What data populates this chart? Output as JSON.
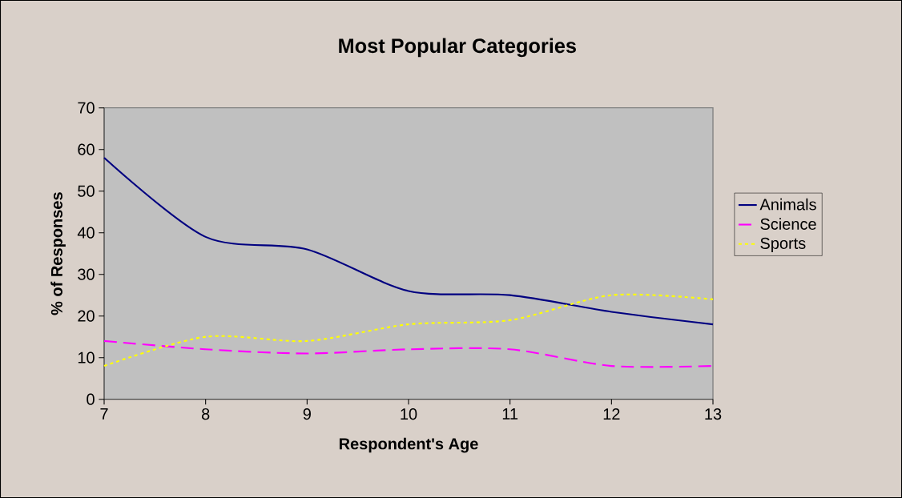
{
  "chart_data": {
    "type": "line",
    "title": "Most Popular Categories",
    "xlabel": "Respondent's Age",
    "ylabel": "% of Responses",
    "x": [
      7,
      8,
      9,
      10,
      11,
      12,
      13
    ],
    "series": [
      {
        "name": "Animals",
        "color": "#000080",
        "line_style": "solid",
        "values": [
          58,
          39,
          36,
          26,
          25,
          21,
          18
        ]
      },
      {
        "name": "Science",
        "color": "#ff00ff",
        "line_style": "dashed",
        "values": [
          14,
          12,
          11,
          12,
          12,
          8,
          8
        ]
      },
      {
        "name": "Sports",
        "color": "#ffff00",
        "line_style": "dotted",
        "values": [
          8,
          15,
          14,
          18,
          19,
          25,
          24
        ]
      }
    ],
    "xlim": [
      7,
      13
    ],
    "xticks": [
      7,
      8,
      9,
      10,
      11,
      12,
      13
    ],
    "ylim": [
      0,
      70
    ],
    "yticks": [
      0,
      10,
      20,
      30,
      40,
      50,
      60,
      70
    ],
    "grid": false,
    "legend": "right",
    "marker": "none"
  }
}
